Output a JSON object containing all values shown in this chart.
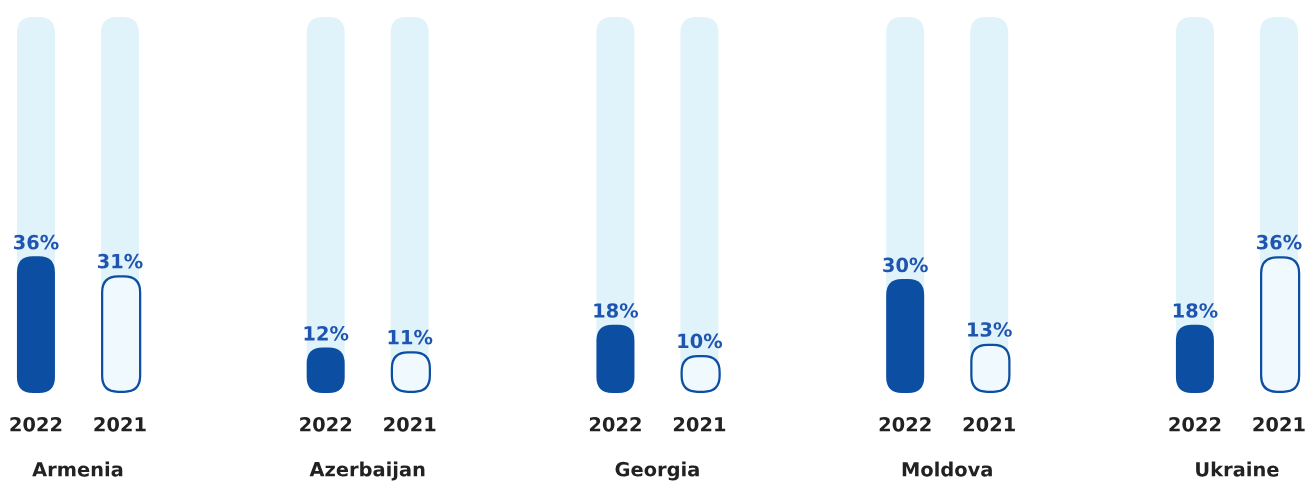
{
  "chart_data": {
    "type": "bar",
    "categories": [
      "Armenia",
      "Azerbaijan",
      "Georgia",
      "Moldova",
      "Ukraine"
    ],
    "series": [
      {
        "name": "2022",
        "color": "#0b4ea2",
        "values": [
          36,
          12,
          18,
          30,
          18
        ],
        "value_labels": [
          "36%",
          "12%",
          "18%",
          "30%",
          "18%"
        ]
      },
      {
        "name": "2021",
        "color": "#0b4ea2",
        "values": [
          31,
          11,
          10,
          13,
          36
        ],
        "value_labels": [
          "31%",
          "11%",
          "10%",
          "13%",
          "36%"
        ]
      }
    ],
    "legend": false
  }
}
